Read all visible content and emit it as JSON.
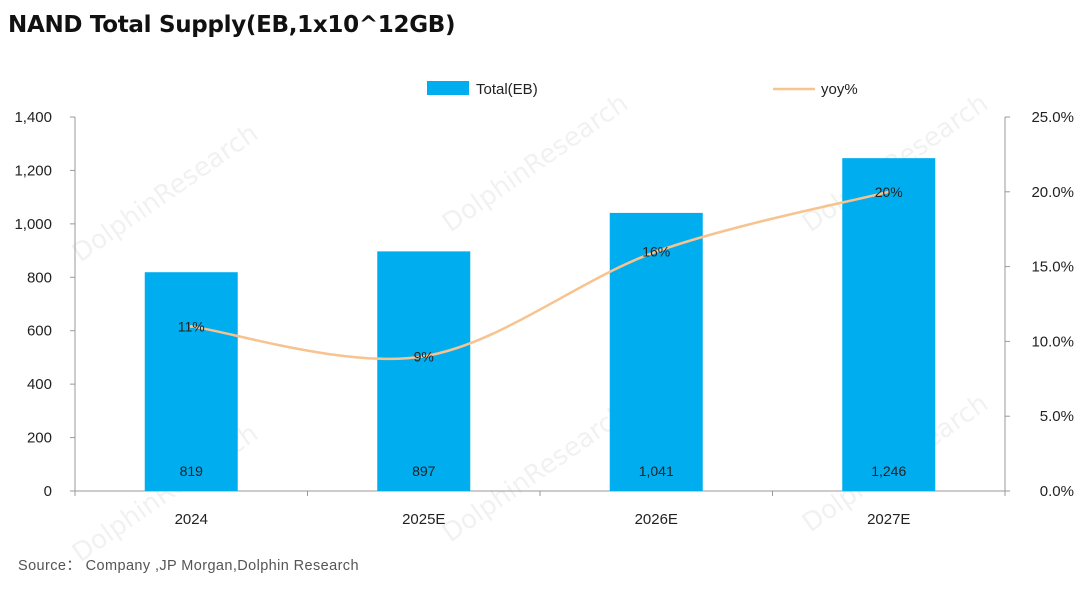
{
  "title": "NAND Total Supply(EB,1x10^12GB)",
  "source": "Source： Company ,JP Morgan,Dolphin Research",
  "watermark": "DolphinResearch",
  "colors": {
    "bar": "#00AEEF",
    "line": "#F7C38F"
  },
  "chart_data": {
    "type": "bar",
    "title": "NAND Total Supply(EB,1x10^12GB)",
    "categories": [
      "2024",
      "2025E",
      "2026E",
      "2027E"
    ],
    "series": [
      {
        "name": "Total(EB)",
        "kind": "bar",
        "axis": "left",
        "values": [
          819,
          897,
          1041,
          1246
        ],
        "labels": [
          "819",
          "897",
          "1,041",
          "1,246"
        ]
      },
      {
        "name": "yoy%",
        "kind": "line",
        "axis": "right",
        "smooth": true,
        "values": [
          11,
          9,
          16,
          20
        ],
        "labels": [
          "11%",
          "9%",
          "16%",
          "20%"
        ]
      }
    ],
    "y_left": {
      "min": 0,
      "max": 1400,
      "step": 200,
      "ticks": [
        "0",
        "200",
        "400",
        "600",
        "800",
        "1,000",
        "1,200",
        "1,400"
      ]
    },
    "y_right": {
      "min": 0,
      "max": 25,
      "step": 5,
      "ticks": [
        "0.0%",
        "5.0%",
        "10.0%",
        "15.0%",
        "20.0%",
        "25.0%"
      ]
    },
    "legend_position": "top-center",
    "grid": false
  }
}
